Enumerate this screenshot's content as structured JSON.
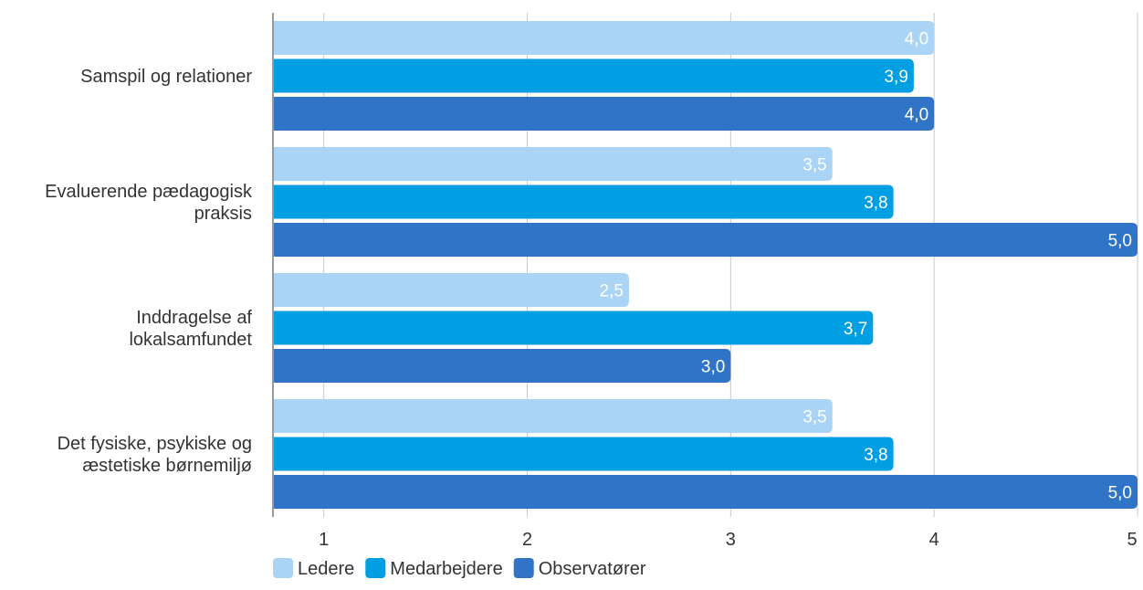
{
  "chart_data": {
    "type": "bar",
    "orientation": "horizontal",
    "categories": [
      [
        "Samspil og relationer"
      ],
      [
        "Evaluerende pædagogisk",
        "praksis"
      ],
      [
        "Inddragelse af",
        "lokalsamfundet"
      ],
      [
        "Det fysiske, psykiske og",
        "æstetiske børnemiljø"
      ]
    ],
    "series": [
      {
        "name": "Ledere",
        "color": "#a9d4f5",
        "values": [
          4.0,
          3.5,
          2.5,
          3.5
        ],
        "labels": [
          "4,0",
          "3,5",
          "2,5",
          "3,5"
        ]
      },
      {
        "name": "Medarbejdere",
        "color": "#009fe3",
        "values": [
          3.9,
          3.8,
          3.7,
          3.8
        ],
        "labels": [
          "3,9",
          "3,8",
          "3,7",
          "3,8"
        ]
      },
      {
        "name": "Observatører",
        "color": "#3074c8",
        "values": [
          4.0,
          5.0,
          3.0,
          5.0
        ],
        "labels": [
          "4,0",
          "5,0",
          "3,0",
          "5,0"
        ]
      }
    ],
    "xlim": [
      0.75,
      5
    ],
    "xticks": [
      "1",
      "2",
      "3",
      "4",
      "5"
    ],
    "xtick_values": [
      1,
      2,
      3,
      4,
      5
    ],
    "grid": true,
    "legend": "bottom-left"
  }
}
